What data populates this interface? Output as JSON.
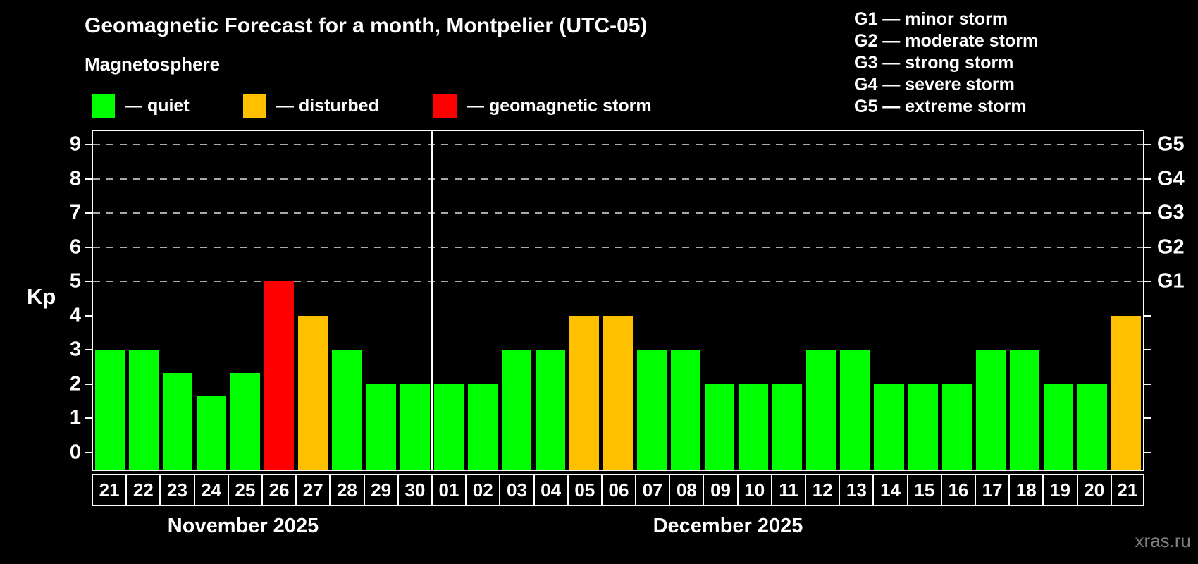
{
  "header": {
    "title": "Geomagnetic Forecast for a month, Montpelier (UTC-05)",
    "subtitle": "Magnetosphere"
  },
  "legend": {
    "items": [
      {
        "key": "quiet",
        "label": "— quiet",
        "color": "#00ff00"
      },
      {
        "key": "disturbed",
        "label": "— disturbed",
        "color": "#ffc000"
      },
      {
        "key": "storm",
        "label": "— geomagnetic storm",
        "color": "#ff0000"
      }
    ]
  },
  "g_scale_legend": {
    "lines": [
      "G1 — minor storm",
      "G2 — moderate storm",
      "G3 — strong storm",
      "G4 — severe storm",
      "G5 — extreme storm"
    ]
  },
  "watermark": "xras.ru",
  "chart_data": {
    "type": "bar",
    "title": "Geomagnetic Forecast for a month, Montpelier (UTC-05)",
    "xlabel": "",
    "ylabel": "Kp",
    "ylim": [
      -0.5,
      9.4
    ],
    "y_ticks": [
      0,
      1,
      2,
      3,
      4,
      5,
      6,
      7,
      8,
      9
    ],
    "right_axis_labels": [
      {
        "kp": 5,
        "label": "G1"
      },
      {
        "kp": 6,
        "label": "G2"
      },
      {
        "kp": 7,
        "label": "G3"
      },
      {
        "kp": 8,
        "label": "G4"
      },
      {
        "kp": 9,
        "label": "G5"
      }
    ],
    "gridlines_at": [
      5,
      6,
      7,
      8,
      9
    ],
    "grid": "dashed",
    "legend_position": "top",
    "categories": [
      "21",
      "22",
      "23",
      "24",
      "25",
      "26",
      "27",
      "28",
      "29",
      "30",
      "01",
      "02",
      "03",
      "04",
      "05",
      "06",
      "07",
      "08",
      "09",
      "10",
      "11",
      "12",
      "13",
      "14",
      "15",
      "16",
      "17",
      "18",
      "19",
      "20",
      "21"
    ],
    "values": [
      3,
      3,
      2.33,
      1.67,
      2.33,
      5,
      4,
      3,
      2,
      2,
      2,
      2,
      3,
      3,
      4,
      4,
      3,
      3,
      2,
      2,
      2,
      3,
      3,
      2,
      2,
      2,
      3,
      3,
      2,
      2,
      4
    ],
    "statuses": [
      "quiet",
      "quiet",
      "quiet",
      "quiet",
      "quiet",
      "storm",
      "disturbed",
      "quiet",
      "quiet",
      "quiet",
      "quiet",
      "quiet",
      "quiet",
      "quiet",
      "disturbed",
      "disturbed",
      "quiet",
      "quiet",
      "quiet",
      "quiet",
      "quiet",
      "quiet",
      "quiet",
      "quiet",
      "quiet",
      "quiet",
      "quiet",
      "quiet",
      "quiet",
      "quiet",
      "disturbed"
    ],
    "months": [
      {
        "label": "November 2025",
        "start_index": 0,
        "days": 10
      },
      {
        "label": "December 2025",
        "start_index": 10,
        "days": 21
      }
    ],
    "colors": {
      "quiet": "#00ff00",
      "disturbed": "#ffc000",
      "storm": "#ff0000"
    }
  }
}
